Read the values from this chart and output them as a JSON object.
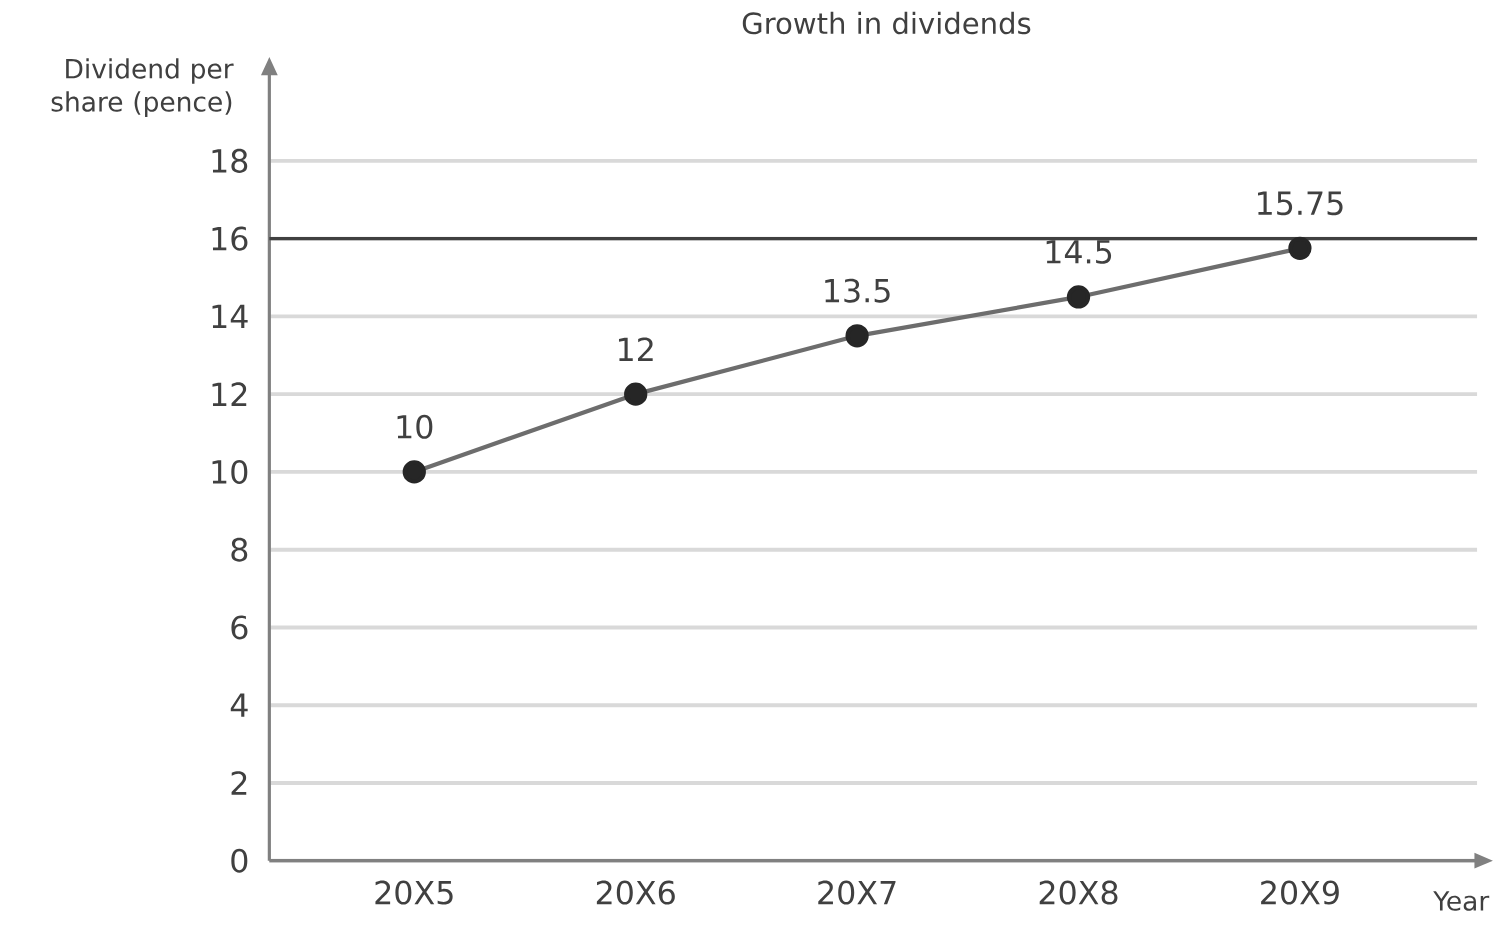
{
  "chart_data": {
    "type": "line",
    "title": "Growth in dividends",
    "xlabel": "Year",
    "ylabel": "Dividend per share (pence)",
    "categories": [
      "20X5",
      "20X6",
      "20X7",
      "20X8",
      "20X9"
    ],
    "series": [
      {
        "color": "#6d6d6d",
        "values": [
          10,
          12,
          13.5,
          14.5,
          15.75
        ]
      }
    ],
    "data_labels": true,
    "marker": "circle",
    "line_style": "solid",
    "grid": "y",
    "ylim": [
      0,
      20.2
    ],
    "yticks": [
      0,
      2,
      4,
      6,
      8,
      10,
      12,
      14,
      16,
      18
    ],
    "ref_lines": [
      {
        "axis": "y",
        "value": 16,
        "color": "#404040"
      }
    ]
  }
}
